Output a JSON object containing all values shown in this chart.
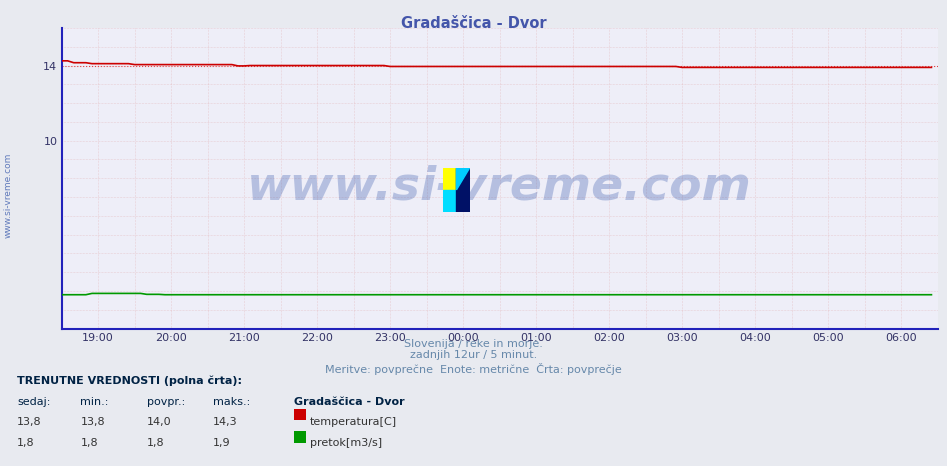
{
  "title": "Gradaščica - Dvor",
  "title_color": "#4455aa",
  "title_fontsize": 10.5,
  "xlabel_lines": [
    "Slovenija / reke in morje.",
    "zadnjih 12ur / 5 minut.",
    "Meritve: povprečne  Enote: metrične  Črta: povprečje"
  ],
  "xlabel_color": "#6688aa",
  "xlabel_fontsize": 8,
  "xmin": 0,
  "xmax": 144,
  "ymin": 0,
  "ymax": 16.0,
  "ytick_labels": [
    "",
    "10",
    "",
    "14",
    ""
  ],
  "ytick_values": [
    0,
    10,
    12,
    14,
    16
  ],
  "xtick_labels": [
    "19:00",
    "20:00",
    "21:00",
    "22:00",
    "23:00",
    "00:00",
    "01:00",
    "02:00",
    "03:00",
    "04:00",
    "05:00",
    "06:00"
  ],
  "xtick_positions": [
    6,
    18,
    30,
    42,
    54,
    66,
    78,
    90,
    102,
    114,
    126,
    138
  ],
  "bg_color": "#e8eaf0",
  "plot_bg_color": "#eeeef8",
  "grid_h_color": "#dd9999",
  "grid_v_color": "#dd9999",
  "temp_color": "#cc0000",
  "flow_color": "#009900",
  "avg_line_color": "#dd0000",
  "avg_line_y": 14.0,
  "watermark_text": "www.si-vreme.com",
  "watermark_color": "#3355aa",
  "watermark_alpha": 0.3,
  "watermark_fontsize": 34,
  "axis_color": "#2222bb",
  "tick_color": "#333366",
  "sidebar_text": "www.si-vreme.com",
  "sidebar_color": "#3355aa",
  "sidebar_fontsize": 6.5,
  "bottom_text_line1": "TRENUTNE VREDNOSTI (polna črta):",
  "bottom_headers": [
    "sedaj:",
    "min.:",
    "povpr.:",
    "maks.:",
    "Gradaščica - Dvor"
  ],
  "bottom_row1": [
    "13,8",
    "13,8",
    "14,0",
    "14,3",
    "temperatura[C]"
  ],
  "bottom_row2": [
    "1,8",
    "1,8",
    "1,8",
    "1,9",
    "pretok[m3/s]"
  ],
  "temp_box_color": "#cc0000",
  "flow_box_color": "#009900"
}
